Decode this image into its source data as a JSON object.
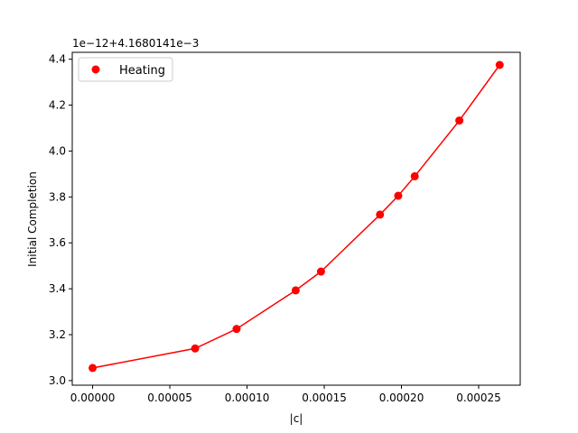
{
  "chart_data": {
    "type": "line",
    "xlabel": "|c|",
    "ylabel": "Initial Completion",
    "offset_label": "1e−12+4.1680141e−3",
    "xlim": [
      -1.32e-05,
      0.0002769
    ],
    "ylim": [
      2.98,
      4.43
    ],
    "x_ticks": [
      0.0,
      5e-05,
      0.0001,
      0.00015,
      0.0002,
      0.00025
    ],
    "x_tick_labels": [
      "0.00000",
      "0.00005",
      "0.00010",
      "0.00015",
      "0.00020",
      "0.00025"
    ],
    "y_ticks": [
      3.0,
      3.2,
      3.4,
      3.6,
      3.8,
      4.0,
      4.2,
      4.4
    ],
    "y_tick_labels": [
      "3.0",
      "3.2",
      "3.4",
      "3.6",
      "3.8",
      "4.0",
      "4.2",
      "4.4"
    ],
    "legend_position": "top-left",
    "grid": false,
    "series": [
      {
        "name": "Heating",
        "color": "#ff0000",
        "x": [
          0.0,
          6.64e-05,
          9.32e-05,
          0.0001315,
          0.0001479,
          0.0001861,
          0.0001979,
          0.0002086,
          0.0002375,
          0.0002636
        ],
        "y": [
          3.055,
          3.14,
          3.225,
          3.393,
          3.475,
          3.723,
          3.805,
          3.89,
          4.133,
          4.375
        ]
      }
    ]
  }
}
